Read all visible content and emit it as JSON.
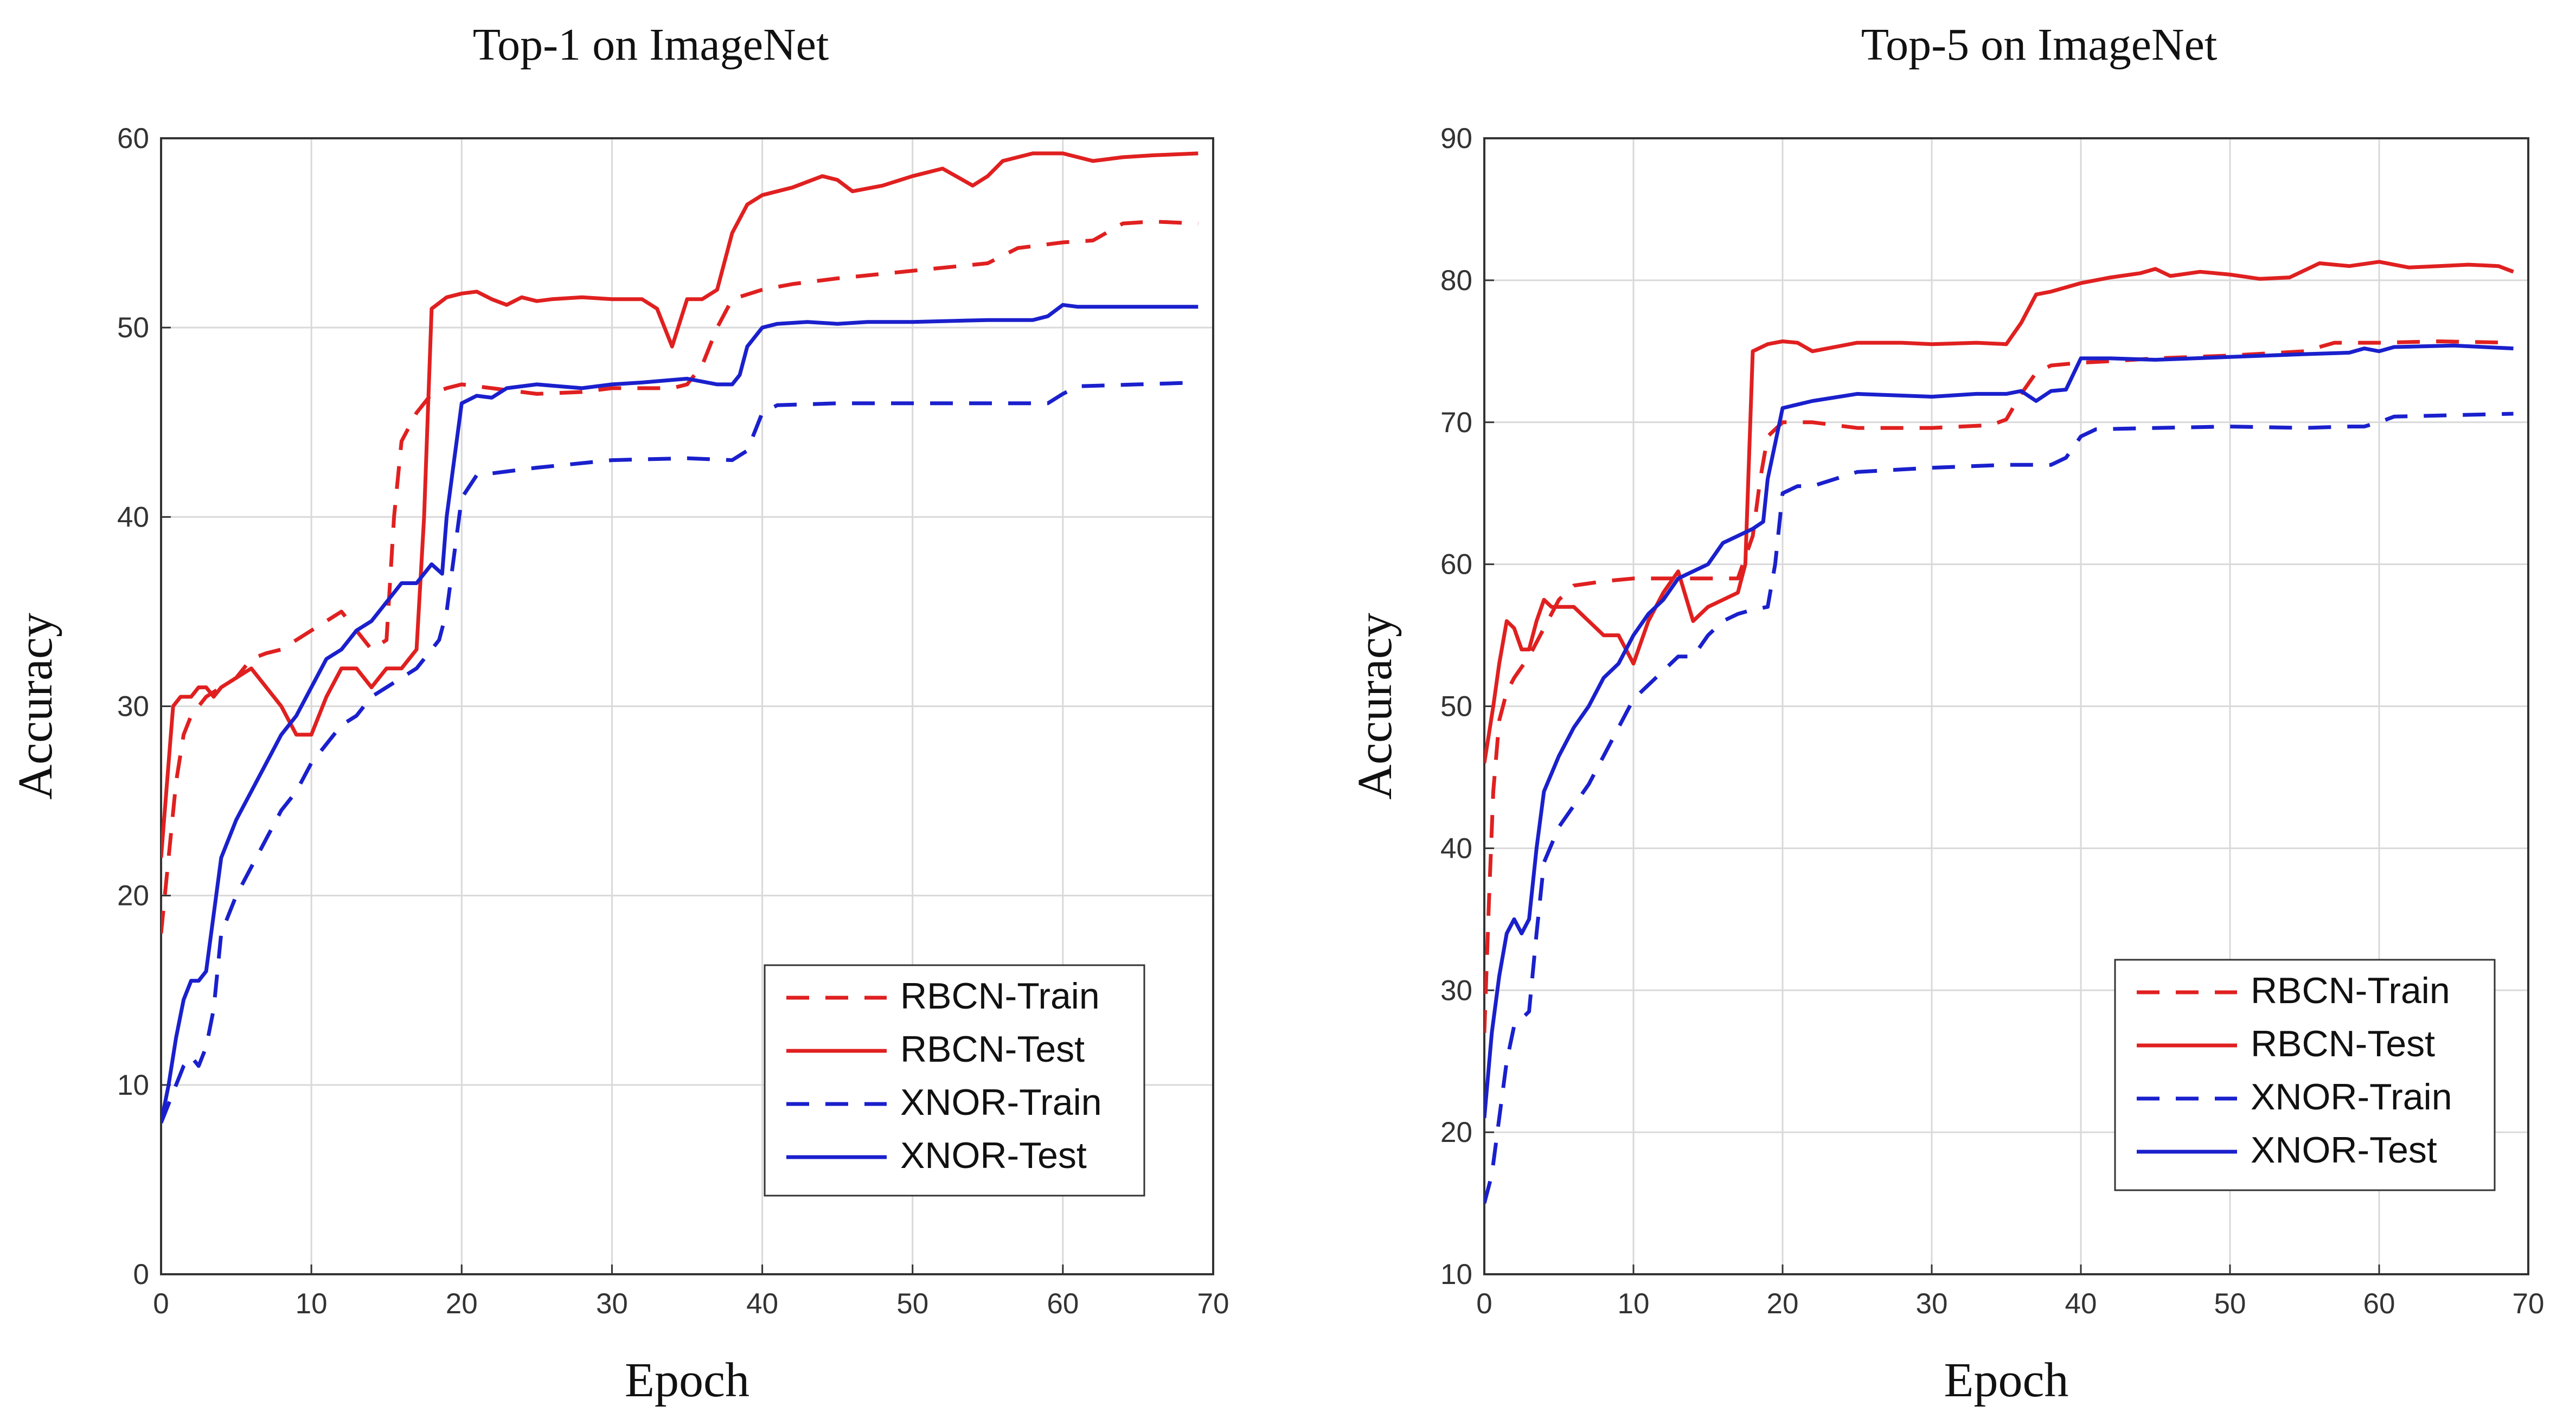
{
  "chart_data": [
    {
      "type": "line",
      "title": "Top-1 on ImageNet",
      "xlabel": "Epoch",
      "ylabel": "Accuracy",
      "xlim": [
        0,
        70
      ],
      "ylim": [
        0,
        60
      ],
      "xticks": [
        0,
        10,
        20,
        30,
        40,
        50,
        60,
        70
      ],
      "yticks": [
        0,
        10,
        20,
        30,
        40,
        50,
        60
      ],
      "grid": true,
      "legend_position": "bottom-right",
      "series": [
        {
          "name": "RBCN-Train",
          "color": "#e02020",
          "dash": "dashed",
          "x": [
            0,
            0.5,
            1,
            1.5,
            2,
            2.5,
            3,
            4,
            5,
            6,
            7,
            8,
            9,
            10,
            11,
            12,
            13,
            14,
            15,
            15.5,
            16,
            17,
            18,
            19,
            20,
            22,
            25,
            28,
            30,
            32,
            34,
            35,
            36,
            37,
            38,
            40,
            42,
            45,
            50,
            55,
            57,
            60,
            62,
            64,
            66,
            69
          ],
          "y": [
            18,
            22,
            26,
            28.5,
            29.5,
            30,
            30.5,
            31,
            31.5,
            32.5,
            32.8,
            33,
            33.5,
            34,
            34.5,
            35,
            34,
            33,
            33.5,
            40,
            44,
            45.5,
            46.5,
            46.8,
            47,
            46.8,
            46.5,
            46.6,
            46.8,
            46.8,
            46.8,
            47,
            48,
            50,
            51.5,
            52,
            52.3,
            52.6,
            53,
            53.4,
            54.2,
            54.5,
            54.6,
            55.5,
            55.6,
            55.5
          ]
        },
        {
          "name": "RBCN-Test",
          "color": "#e02020",
          "dash": "solid",
          "x": [
            0,
            0.3,
            0.8,
            1.3,
            2,
            2.5,
            3,
            3.5,
            4,
            5,
            6,
            7,
            8,
            9,
            10,
            11,
            12,
            13,
            14,
            15,
            16,
            17,
            17.5,
            18,
            19,
            20,
            21,
            22,
            23,
            24,
            25,
            26,
            28,
            30,
            32,
            33,
            34,
            35,
            36,
            37,
            38,
            39,
            40,
            42,
            44,
            45,
            46,
            48,
            50,
            52,
            54,
            55,
            56,
            58,
            60,
            62,
            64,
            66,
            69
          ],
          "y": [
            22,
            25,
            30,
            30.5,
            30.5,
            31,
            31,
            30.5,
            31,
            31.5,
            32,
            31,
            30,
            28.5,
            28.5,
            30.5,
            32,
            32,
            31,
            32,
            32,
            33,
            40,
            51,
            51.6,
            51.8,
            51.9,
            51.5,
            51.2,
            51.6,
            51.4,
            51.5,
            51.6,
            51.5,
            51.5,
            51,
            49,
            51.5,
            51.5,
            52,
            55,
            56.5,
            57,
            57.4,
            58,
            57.8,
            57.2,
            57.5,
            58,
            58.4,
            57.5,
            58,
            58.8,
            59.2,
            59.2,
            58.8,
            59,
            59.1,
            59.2
          ]
        },
        {
          "name": "XNOR-Train",
          "color": "#1a20cc",
          "dash": "dashed",
          "x": [
            0,
            0.5,
            1,
            1.5,
            2,
            2.5,
            3,
            3.5,
            4,
            5,
            6,
            7,
            8,
            9,
            10,
            11,
            12,
            13,
            14,
            15,
            16,
            17,
            18,
            18.5,
            19,
            20,
            21,
            22,
            25,
            30,
            35,
            38,
            39,
            40,
            41,
            45,
            50,
            55,
            58,
            59,
            60,
            61,
            65,
            69
          ],
          "y": [
            8,
            9,
            10,
            11,
            11.5,
            11,
            12,
            14,
            18,
            20,
            21.5,
            23,
            24.5,
            25.5,
            27,
            28,
            29,
            29.5,
            30.5,
            31,
            31.5,
            32,
            33,
            33.5,
            35,
            41,
            42.2,
            42.3,
            42.6,
            43,
            43.1,
            43,
            43.5,
            45.5,
            45.9,
            46,
            46,
            46,
            46,
            46,
            46.5,
            46.9,
            47,
            47.1
          ]
        },
        {
          "name": "XNOR-Test",
          "color": "#1a20cc",
          "dash": "solid",
          "x": [
            0,
            0.5,
            1,
            1.5,
            2,
            2.5,
            3,
            4,
            5,
            6,
            7,
            8,
            9,
            10,
            11,
            12,
            13,
            14,
            15,
            16,
            17,
            18,
            18.7,
            19,
            19.5,
            20,
            21,
            22,
            23,
            25,
            28,
            30,
            32,
            35,
            37,
            38,
            38.5,
            39,
            40,
            41,
            43,
            45,
            47,
            50,
            55,
            58,
            59,
            60,
            61,
            65,
            69
          ],
          "y": [
            8,
            10,
            12.5,
            14.5,
            15.5,
            15.5,
            16,
            22,
            24,
            25.5,
            27,
            28.5,
            29.5,
            31,
            32.5,
            33,
            34,
            34.5,
            35.5,
            36.5,
            36.5,
            37.5,
            37,
            40,
            43,
            46,
            46.4,
            46.3,
            46.8,
            47,
            46.8,
            47,
            47.1,
            47.3,
            47,
            47,
            47.5,
            49,
            50,
            50.2,
            50.3,
            50.2,
            50.3,
            50.3,
            50.4,
            50.4,
            50.6,
            51.2,
            51.1,
            51.1,
            51.1
          ]
        }
      ]
    },
    {
      "type": "line",
      "title": "Top-5 on ImageNet",
      "xlabel": "Epoch",
      "ylabel": "Accuracy",
      "xlim": [
        0,
        70
      ],
      "ylim": [
        10,
        90
      ],
      "xticks": [
        0,
        10,
        20,
        30,
        40,
        50,
        60,
        70
      ],
      "yticks": [
        10,
        20,
        30,
        40,
        50,
        60,
        70,
        80,
        90
      ],
      "grid": true,
      "legend_position": "bottom-right",
      "series": [
        {
          "name": "RBCN-Train",
          "color": "#e02020",
          "dash": "dashed",
          "x": [
            0,
            0.3,
            0.6,
            1,
            1.5,
            2,
            3,
            4,
            5,
            6,
            8,
            10,
            12,
            14,
            16,
            17,
            18,
            18.5,
            19,
            20,
            22,
            25,
            30,
            34,
            35,
            36,
            37,
            38,
            40,
            42,
            45,
            50,
            55,
            57,
            60,
            64,
            69
          ],
          "y": [
            27,
            36,
            44,
            49,
            51,
            52,
            53.5,
            55.5,
            57.5,
            58.5,
            58.8,
            59,
            59,
            59,
            59,
            59,
            62,
            66,
            69,
            70,
            70,
            69.6,
            69.6,
            69.8,
            70.2,
            72,
            73.5,
            74,
            74.2,
            74.3,
            74.5,
            74.7,
            75,
            75.6,
            75.6,
            75.7,
            75.6
          ]
        },
        {
          "name": "RBCN-Test",
          "color": "#e02020",
          "dash": "solid",
          "x": [
            0,
            0.3,
            0.6,
            1,
            1.5,
            2,
            2.5,
            3,
            3.5,
            4,
            4.5,
            5,
            6,
            7,
            8,
            9,
            10,
            11,
            12,
            13,
            14,
            15,
            16,
            17,
            17.5,
            18,
            19,
            20,
            21,
            22,
            23,
            25,
            28,
            30,
            33,
            35,
            36,
            37,
            38,
            40,
            42,
            44,
            45,
            46,
            48,
            50,
            52,
            54,
            56,
            58,
            60,
            62,
            64,
            66,
            68,
            69
          ],
          "y": [
            46,
            48,
            50,
            53,
            56,
            55.5,
            54,
            54,
            56,
            57.5,
            57,
            57,
            57,
            56,
            55,
            55,
            53,
            56,
            58,
            59.5,
            56,
            57,
            57.5,
            58,
            60,
            75,
            75.5,
            75.7,
            75.6,
            75,
            75.2,
            75.6,
            75.6,
            75.5,
            75.6,
            75.5,
            77,
            79,
            79.2,
            79.8,
            80.2,
            80.5,
            80.8,
            80.3,
            80.6,
            80.4,
            80.1,
            80.2,
            81.2,
            81,
            81.3,
            80.9,
            81,
            81.1,
            81,
            80.6
          ]
        },
        {
          "name": "XNOR-Train",
          "color": "#1a20cc",
          "dash": "dashed",
          "x": [
            0,
            0.5,
            1,
            1.5,
            2,
            2.5,
            3,
            3.5,
            4,
            5,
            6,
            7,
            8,
            9,
            10,
            11,
            12,
            13,
            14,
            15,
            16,
            17,
            18,
            19,
            19.5,
            20,
            21,
            22,
            25,
            30,
            35,
            38,
            39,
            40,
            41,
            45,
            50,
            55,
            58,
            59,
            60,
            61,
            65,
            69
          ],
          "y": [
            15,
            17,
            21,
            25,
            27.5,
            28,
            28.5,
            34,
            39,
            41.5,
            43,
            44.5,
            46.5,
            48.5,
            50.5,
            51.5,
            52.5,
            53.5,
            53.5,
            55,
            56,
            56.5,
            56.8,
            57,
            60,
            65,
            65.5,
            65.5,
            66.5,
            66.8,
            67,
            67,
            67.5,
            69,
            69.5,
            69.6,
            69.7,
            69.6,
            69.7,
            69.7,
            70,
            70.4,
            70.5,
            70.6
          ]
        },
        {
          "name": "XNOR-Test",
          "color": "#1a20cc",
          "dash": "solid",
          "x": [
            0,
            0.5,
            1,
            1.5,
            2,
            2.5,
            3,
            3.5,
            4,
            5,
            6,
            7,
            8,
            9,
            10,
            11,
            12,
            13,
            14,
            15,
            16,
            17,
            18,
            18.7,
            19,
            19.5,
            20,
            22,
            25,
            30,
            33,
            35,
            36,
            37,
            38,
            39,
            40,
            42,
            45,
            50,
            55,
            58,
            59,
            60,
            61,
            65,
            69
          ],
          "y": [
            21,
            27,
            31,
            34,
            35,
            34,
            35,
            40,
            44,
            46.5,
            48.5,
            50,
            52,
            53,
            55,
            56.5,
            57.5,
            59,
            59.5,
            60,
            61.5,
            62,
            62.5,
            63,
            66,
            68.5,
            71,
            71.5,
            72,
            71.8,
            72,
            72,
            72.2,
            71.5,
            72.2,
            72.3,
            74.5,
            74.5,
            74.4,
            74.6,
            74.8,
            74.9,
            75.2,
            75,
            75.3,
            75.4,
            75.2
          ]
        }
      ]
    }
  ]
}
